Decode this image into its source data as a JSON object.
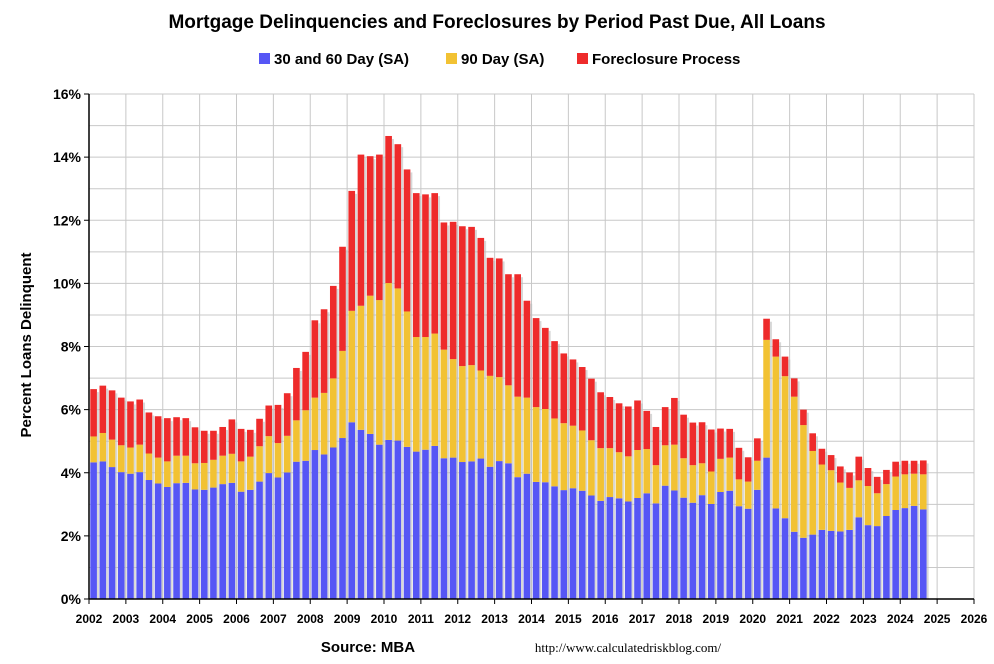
{
  "chart_data": {
    "type": "bar",
    "stacked": true,
    "title": "Mortgage Delinquencies and Foreclosures by Period Past Due, All Loans",
    "ylabel": "Percent Loans Delinquent",
    "ylim": [
      0,
      16
    ],
    "y_ticks": [
      "0%",
      "2%",
      "4%",
      "6%",
      "8%",
      "10%",
      "12%",
      "14%",
      "16%"
    ],
    "x_ticks": [
      "2002",
      "2003",
      "2004",
      "2005",
      "2006",
      "2007",
      "2008",
      "2009",
      "2010",
      "2011",
      "2012",
      "2013",
      "2014",
      "2015",
      "2016",
      "2017",
      "2018",
      "2019",
      "2020",
      "2021",
      "2022",
      "2023",
      "2024",
      "2025",
      "2026"
    ],
    "xlim": [
      2002,
      2026
    ],
    "legend_position": "top",
    "grid": true,
    "frequency": "quarterly",
    "start_period": "2002 Q1",
    "series": [
      {
        "name": "30 and 60 Day (SA)",
        "color": "#5656F5",
        "values": [
          4.33,
          4.36,
          4.18,
          4.02,
          3.97,
          4.02,
          3.77,
          3.66,
          3.55,
          3.67,
          3.68,
          3.47,
          3.46,
          3.53,
          3.64,
          3.68,
          3.4,
          3.46,
          3.72,
          3.99,
          3.85,
          4.01,
          4.35,
          4.38,
          4.72,
          4.58,
          4.8,
          5.1,
          5.6,
          5.36,
          5.23,
          4.89,
          5.04,
          5.02,
          4.82,
          4.67,
          4.73,
          4.85,
          4.46,
          4.48,
          4.34,
          4.36,
          4.45,
          4.19,
          4.37,
          4.3,
          3.86,
          3.97,
          3.71,
          3.7,
          3.57,
          3.45,
          3.51,
          3.43,
          3.28,
          3.11,
          3.23,
          3.19,
          3.09,
          3.2,
          3.35,
          3.03,
          3.59,
          3.44,
          3.21,
          3.05,
          3.29,
          3.01,
          3.39,
          3.43,
          2.94,
          2.86,
          3.46,
          4.48,
          2.87,
          2.56,
          2.13,
          1.94,
          2.04,
          2.19,
          2.16,
          2.14,
          2.19,
          2.59,
          2.34,
          2.31,
          2.63,
          2.82,
          2.88,
          2.95,
          2.84
        ]
      },
      {
        "name": "90 Day (SA)",
        "color": "#F2C233",
        "values": [
          0.82,
          0.9,
          0.87,
          0.85,
          0.83,
          0.87,
          0.84,
          0.82,
          0.81,
          0.87,
          0.86,
          0.83,
          0.85,
          0.88,
          0.9,
          0.92,
          0.96,
          1.05,
          1.12,
          1.17,
          1.09,
          1.16,
          1.31,
          1.6,
          1.66,
          1.95,
          2.19,
          2.76,
          3.53,
          3.93,
          4.38,
          4.58,
          4.97,
          4.82,
          4.29,
          3.63,
          3.57,
          3.56,
          3.44,
          3.12,
          3.04,
          3.05,
          2.79,
          2.88,
          2.66,
          2.47,
          2.55,
          2.41,
          2.37,
          2.32,
          2.15,
          2.12,
          1.98,
          1.91,
          1.75,
          1.67,
          1.55,
          1.46,
          1.43,
          1.52,
          1.4,
          1.21,
          1.28,
          1.45,
          1.25,
          1.19,
          1.01,
          1.03,
          1.05,
          1.05,
          0.85,
          0.86,
          0.92,
          3.73,
          4.81,
          4.5,
          4.28,
          3.57,
          2.65,
          2.07,
          1.92,
          1.55,
          1.33,
          1.17,
          1.24,
          1.04,
          1.01,
          1.06,
          1.07,
          1.02,
          1.11
        ]
      },
      {
        "name": "Foreclosure Process",
        "color": "#EE2B2B",
        "values": [
          1.5,
          1.5,
          1.56,
          1.51,
          1.46,
          1.43,
          1.3,
          1.31,
          1.37,
          1.22,
          1.19,
          1.14,
          1.02,
          0.92,
          0.91,
          1.09,
          1.03,
          0.85,
          0.87,
          0.97,
          1.21,
          1.35,
          1.66,
          1.85,
          2.45,
          2.65,
          2.93,
          3.3,
          3.8,
          4.79,
          4.42,
          4.61,
          4.66,
          4.57,
          4.5,
          4.56,
          4.52,
          4.45,
          4.03,
          4.35,
          4.43,
          4.38,
          4.2,
          3.74,
          3.76,
          3.52,
          3.88,
          3.07,
          2.82,
          2.57,
          2.45,
          2.21,
          2.1,
          2.01,
          1.95,
          1.77,
          1.62,
          1.55,
          1.58,
          1.57,
          1.21,
          1.21,
          1.21,
          1.48,
          1.38,
          1.35,
          1.3,
          1.33,
          0.96,
          0.91,
          1.0,
          0.77,
          0.71,
          0.67,
          0.55,
          0.62,
          0.58,
          0.49,
          0.56,
          0.5,
          0.48,
          0.51,
          0.49,
          0.75,
          0.57,
          0.52,
          0.45,
          0.47,
          0.43,
          0.41,
          0.44
        ]
      }
    ]
  },
  "footer": {
    "source": "Source: MBA",
    "url": "http://www.calculatedriskblog.com/"
  }
}
